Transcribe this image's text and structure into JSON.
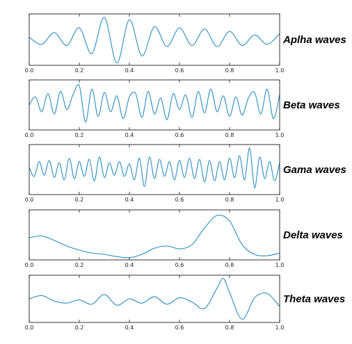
{
  "figure": {
    "chart_data": [
      {
        "type": "line",
        "title": "",
        "label": "Aplha waves",
        "xlim": [
          0.0,
          1.0
        ],
        "xticks": [
          "0.0",
          "0.2",
          "0.4",
          "0.6",
          "0.8",
          "1.0"
        ],
        "x": [
          0.0,
          0.05,
          0.1,
          0.15,
          0.2,
          0.25,
          0.3,
          0.35,
          0.4,
          0.45,
          0.5,
          0.55,
          0.6,
          0.65,
          0.7,
          0.75,
          0.8,
          0.85,
          0.9,
          0.95,
          1.0
        ],
        "y": [
          0.1,
          -0.2,
          0.3,
          -0.25,
          0.5,
          -0.6,
          0.95,
          -1.0,
          0.85,
          -0.7,
          0.55,
          -0.3,
          0.5,
          -0.25,
          0.45,
          -0.3,
          0.35,
          -0.25,
          0.2,
          -0.2,
          0.25
        ],
        "ylim": [
          -1.1,
          1.1
        ],
        "color": "#2b8cbe"
      },
      {
        "type": "line",
        "title": "",
        "label": "Beta waves",
        "xlim": [
          0.0,
          1.0
        ],
        "xticks": [
          "0.0",
          "0.2",
          "0.4",
          "0.6",
          "0.8",
          "1.0"
        ],
        "x": [
          0.0,
          0.025,
          0.05,
          0.075,
          0.1,
          0.125,
          0.15,
          0.175,
          0.2,
          0.225,
          0.25,
          0.275,
          0.3,
          0.325,
          0.35,
          0.375,
          0.4,
          0.425,
          0.45,
          0.475,
          0.5,
          0.525,
          0.55,
          0.575,
          0.6,
          0.625,
          0.65,
          0.675,
          0.7,
          0.725,
          0.75,
          0.775,
          0.8,
          0.825,
          0.85,
          0.875,
          0.9,
          0.925,
          0.95,
          0.975,
          1.0
        ],
        "y": [
          0.0,
          0.35,
          -0.3,
          0.5,
          -0.4,
          0.6,
          -0.2,
          0.45,
          0.85,
          -0.75,
          0.7,
          -0.5,
          0.55,
          -0.3,
          0.4,
          -0.6,
          0.35,
          0.5,
          -0.55,
          0.6,
          -0.4,
          0.3,
          -0.65,
          0.5,
          -0.2,
          0.45,
          -0.55,
          0.6,
          -0.35,
          0.7,
          -0.3,
          0.4,
          -0.5,
          0.35,
          -0.45,
          0.3,
          0.55,
          -0.4,
          0.7,
          -0.6,
          0.45
        ],
        "ylim": [
          -1.1,
          1.1
        ],
        "color": "#2b8cbe"
      },
      {
        "type": "line",
        "title": "",
        "label": "Gama waves",
        "xlim": [
          0.0,
          1.0
        ],
        "xticks": [
          "0.0",
          "0.2",
          "0.4",
          "0.6",
          "0.8",
          "1.0"
        ],
        "x": [
          0.0,
          0.02,
          0.04,
          0.06,
          0.08,
          0.1,
          0.12,
          0.14,
          0.16,
          0.18,
          0.2,
          0.22,
          0.24,
          0.26,
          0.28,
          0.3,
          0.32,
          0.34,
          0.36,
          0.38,
          0.4,
          0.42,
          0.44,
          0.46,
          0.48,
          0.5,
          0.52,
          0.54,
          0.56,
          0.58,
          0.6,
          0.62,
          0.64,
          0.66,
          0.68,
          0.7,
          0.72,
          0.74,
          0.76,
          0.78,
          0.8,
          0.82,
          0.84,
          0.86,
          0.88,
          0.9,
          0.92,
          0.94,
          0.96,
          0.98,
          1.0
        ],
        "y": [
          0.1,
          -0.3,
          0.35,
          -0.25,
          0.4,
          -0.35,
          0.3,
          -0.45,
          0.5,
          -0.4,
          0.35,
          -0.3,
          0.45,
          -0.5,
          0.55,
          -0.35,
          0.3,
          -0.25,
          0.35,
          -0.3,
          0.25,
          -0.45,
          0.5,
          -0.75,
          0.55,
          -0.4,
          0.45,
          -0.3,
          0.35,
          -0.45,
          0.4,
          -0.35,
          0.5,
          -0.4,
          0.45,
          -0.55,
          0.4,
          -0.5,
          0.35,
          -0.45,
          0.5,
          -0.35,
          0.6,
          -0.45,
          0.95,
          -0.8,
          0.55,
          -0.4,
          0.35,
          -0.5,
          0.3
        ],
        "ylim": [
          -1.1,
          1.1
        ],
        "color": "#2b8cbe"
      },
      {
        "type": "line",
        "title": "",
        "label": "Delta waves",
        "xlim": [
          0.0,
          1.0
        ],
        "xticks": [
          "0.0",
          "0.2",
          "0.4",
          "0.6",
          "0.8",
          "1.0"
        ],
        "x": [
          0.0,
          0.05,
          0.1,
          0.15,
          0.2,
          0.25,
          0.3,
          0.35,
          0.4,
          0.45,
          0.5,
          0.55,
          0.6,
          0.65,
          0.7,
          0.75,
          0.8,
          0.85,
          0.9,
          0.95,
          1.0
        ],
        "y": [
          0.0,
          0.06,
          -0.1,
          -0.3,
          -0.45,
          -0.55,
          -0.6,
          -0.68,
          -0.72,
          -0.6,
          -0.38,
          -0.3,
          -0.4,
          -0.25,
          0.35,
          0.8,
          0.6,
          -0.25,
          -0.6,
          -0.65,
          -0.55
        ],
        "ylim": [
          -0.8,
          1.0
        ],
        "color": "#2b8cbe"
      },
      {
        "type": "line",
        "title": "",
        "label": "Theta waves",
        "xlim": [
          0.0,
          1.0
        ],
        "xticks": [
          "0.0",
          "0.2",
          "0.4",
          "0.6",
          "0.8",
          "1.0"
        ],
        "x": [
          0.0,
          0.05,
          0.1,
          0.15,
          0.2,
          0.25,
          0.3,
          0.35,
          0.4,
          0.45,
          0.5,
          0.55,
          0.6,
          0.65,
          0.7,
          0.75,
          0.775,
          0.8,
          0.85,
          0.9,
          0.95,
          1.0
        ],
        "y": [
          0.0,
          0.15,
          -0.1,
          -0.2,
          -0.05,
          -0.25,
          0.2,
          -0.3,
          0.0,
          -0.2,
          0.1,
          -0.25,
          0.05,
          -0.15,
          -0.45,
          0.5,
          0.95,
          0.3,
          -0.95,
          0.05,
          0.25,
          -0.35
        ],
        "ylim": [
          -1.1,
          1.1
        ],
        "color": "#2b8cbe"
      }
    ]
  }
}
